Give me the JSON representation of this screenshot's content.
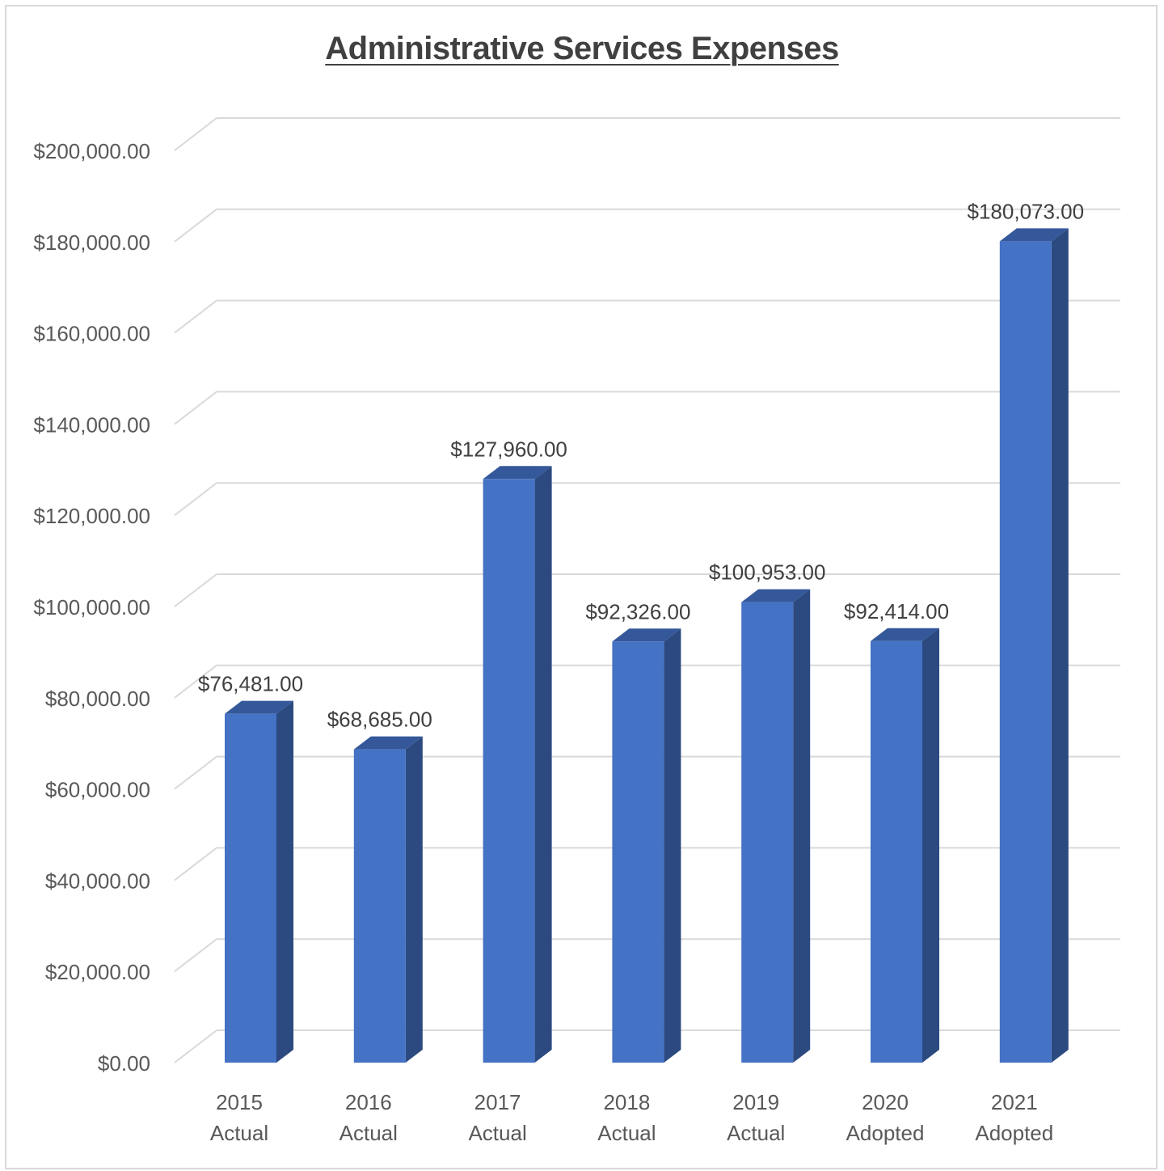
{
  "chart_data": {
    "type": "bar",
    "title": "Administrative Services Expenses",
    "categories": [
      [
        "2015",
        "Actual"
      ],
      [
        "2016",
        "Actual"
      ],
      [
        "2017",
        "Actual"
      ],
      [
        "2018",
        "Actual"
      ],
      [
        "2019",
        "Actual"
      ],
      [
        "2020",
        "Adopted"
      ],
      [
        "2021",
        "Adopted"
      ]
    ],
    "values": [
      76481,
      68685,
      127960,
      92326,
      100953,
      92414,
      180073
    ],
    "data_labels": [
      "$76,481.00",
      "$68,685.00",
      "$127,960.00",
      "$92,326.00",
      "$100,953.00",
      "$92,414.00",
      "$180,073.00"
    ],
    "ylim": [
      0,
      200000
    ],
    "yticks": [
      0,
      20000,
      40000,
      60000,
      80000,
      100000,
      120000,
      140000,
      160000,
      180000,
      200000
    ],
    "ytick_labels": [
      "$0.00",
      "$20,000.00",
      "$40,000.00",
      "$60,000.00",
      "$80,000.00",
      "$100,000.00",
      "$120,000.00",
      "$140,000.00",
      "$160,000.00",
      "$180,000.00",
      "$200,000.00"
    ],
    "xlabel": "",
    "ylabel": "",
    "grid": true,
    "legend": "none",
    "style": "3d-column",
    "colors": {
      "bar_front": "#4472C4",
      "bar_side": "#2C4A80",
      "bar_top": "#34589A",
      "gridline": "#D9D9D9",
      "axis_text": "#595959",
      "label_text": "#404040"
    }
  }
}
